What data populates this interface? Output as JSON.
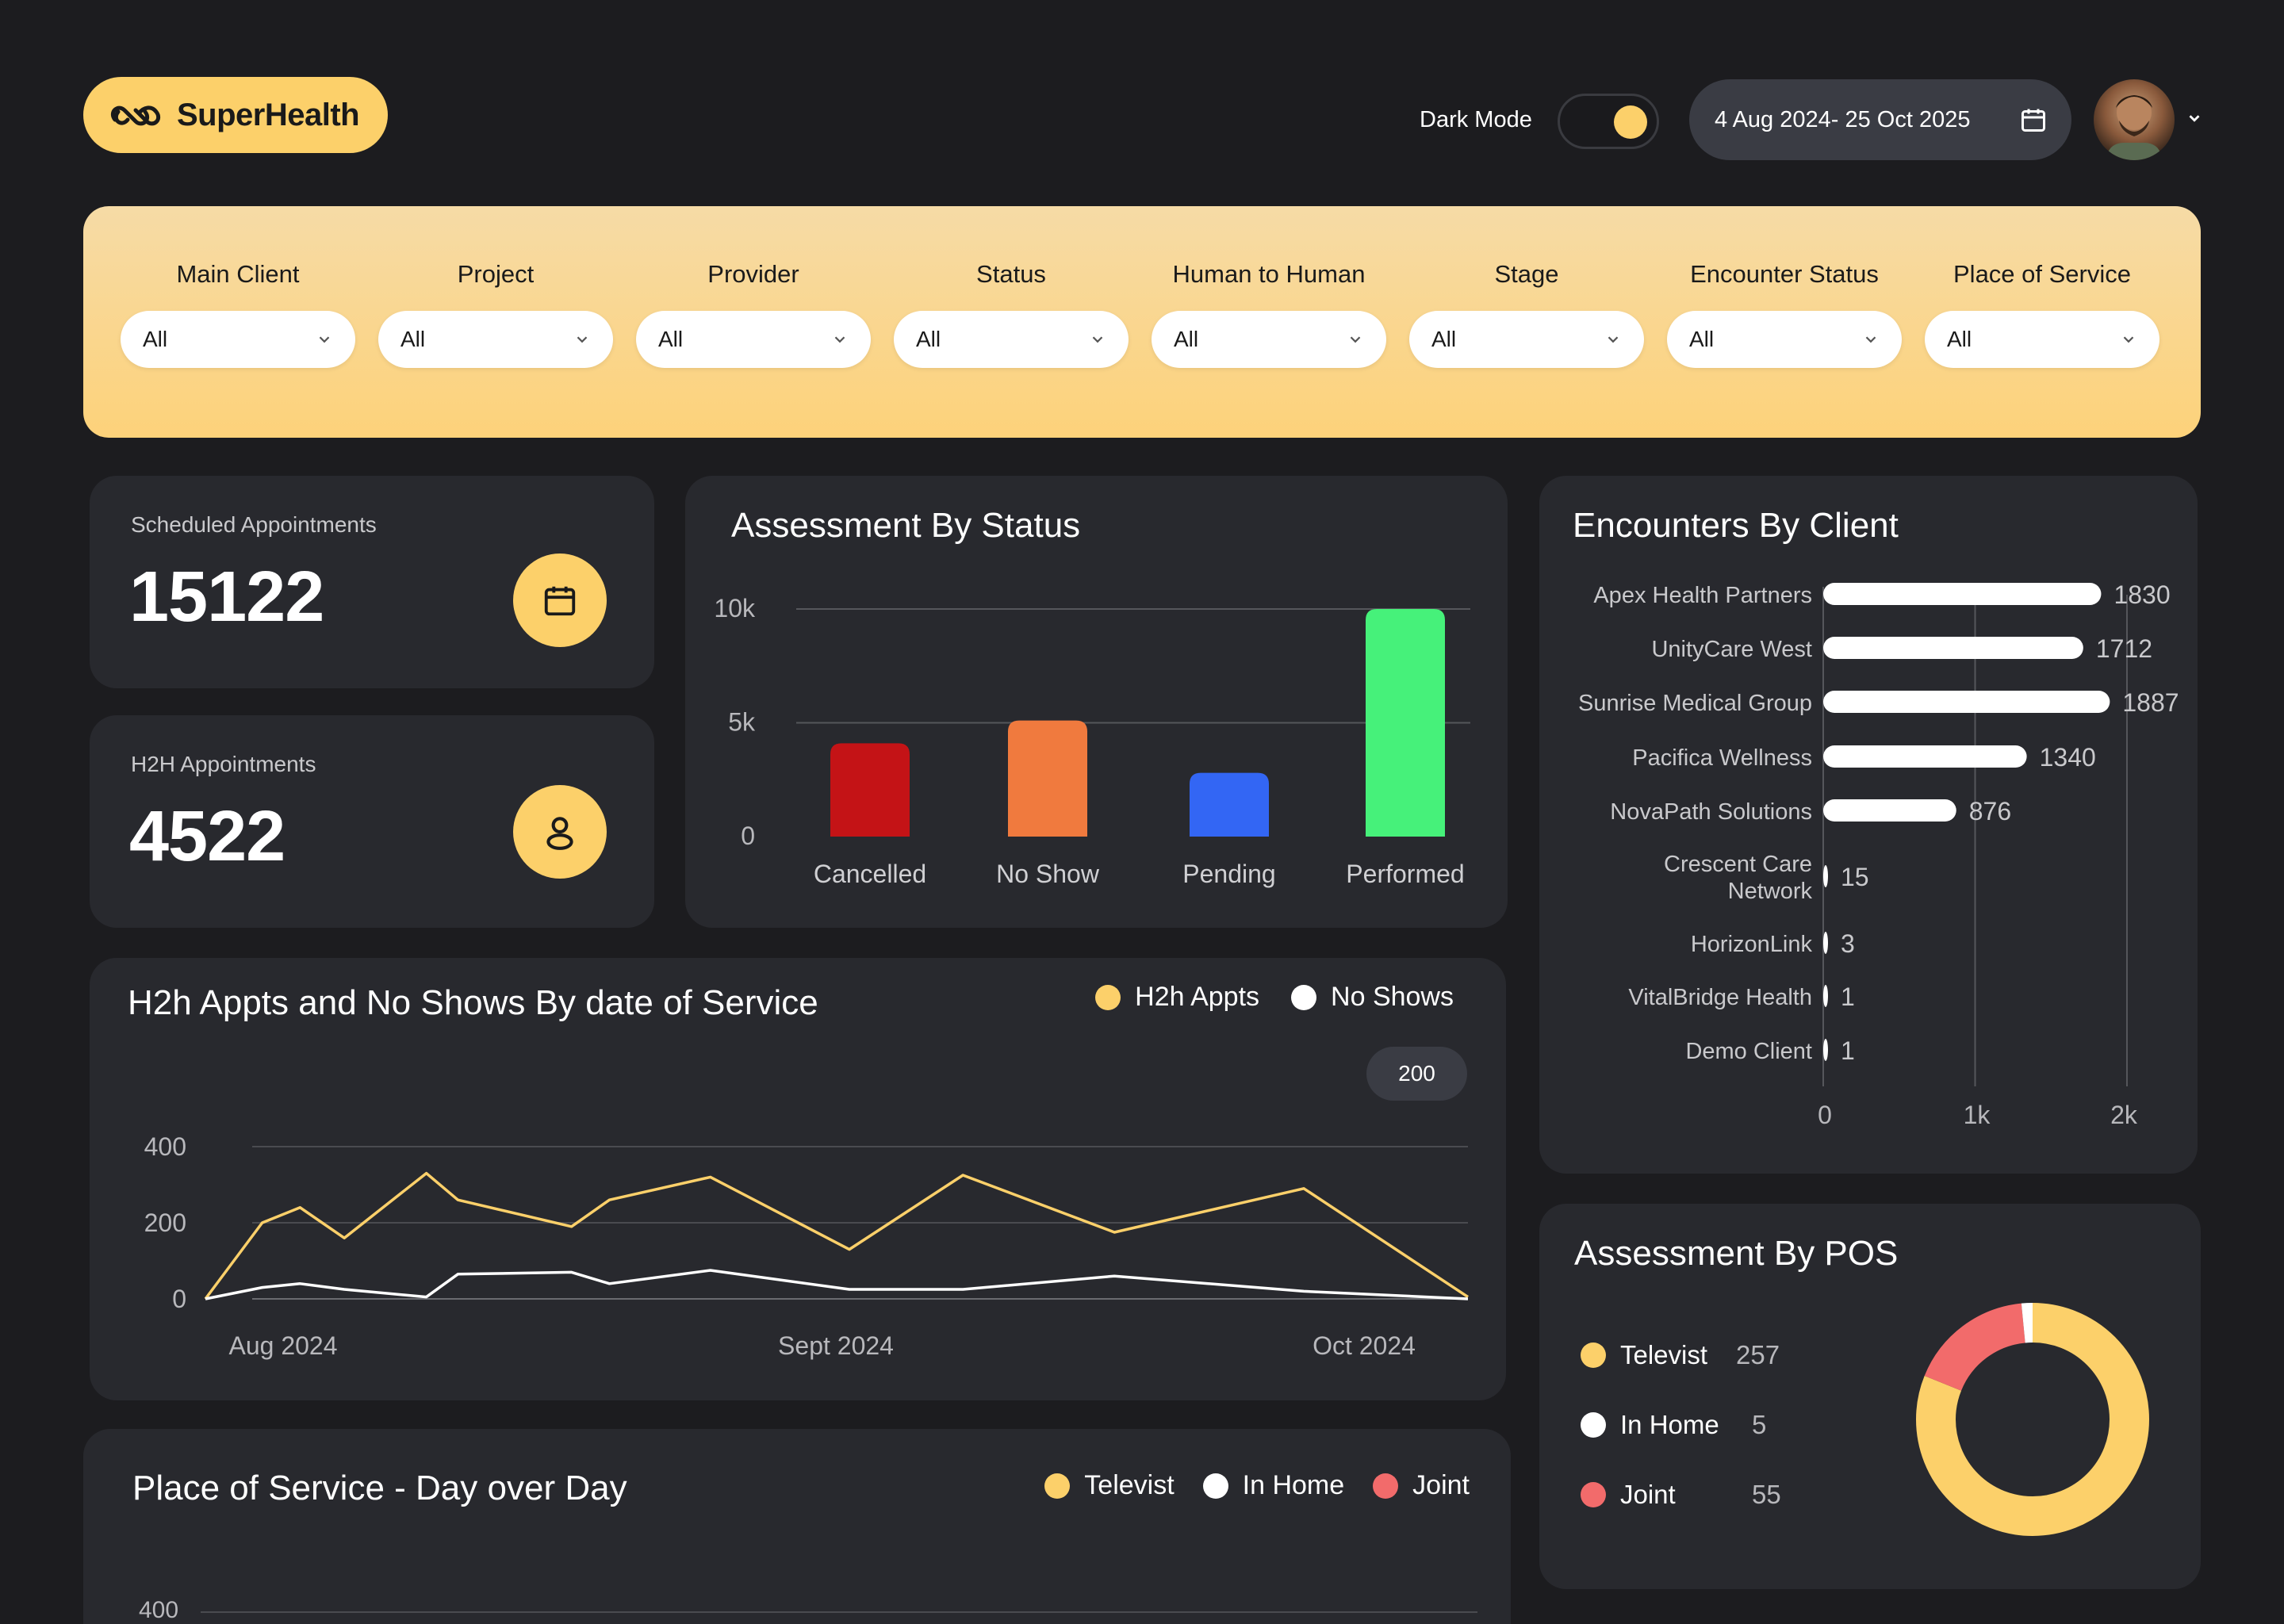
{
  "brand": {
    "name": "SuperHealth"
  },
  "header": {
    "dark_mode_label": "Dark Mode",
    "date_range": "4 Aug 2024- 25 Oct 2025"
  },
  "filters": [
    {
      "label": "Main Client",
      "value": "All"
    },
    {
      "label": "Project",
      "value": "All"
    },
    {
      "label": "Provider",
      "value": "All"
    },
    {
      "label": "Status",
      "value": "All"
    },
    {
      "label": "Human to Human",
      "value": "All"
    },
    {
      "label": "Stage",
      "value": "All"
    },
    {
      "label": "Encounter Status",
      "value": "All"
    },
    {
      "label": "Place of Service",
      "value": "All"
    }
  ],
  "kpis": {
    "scheduled": {
      "title": "Scheduled Appointments",
      "value": "15122"
    },
    "h2h": {
      "title": "H2H Appointments",
      "value": "4522"
    }
  },
  "assessment_status": {
    "title": "Assessment By Status",
    "chart_data": {
      "type": "bar",
      "categories": [
        "Cancelled",
        "No Show",
        "Pending",
        "Performed"
      ],
      "values": [
        4100,
        5100,
        2800,
        10000
      ],
      "colors": [
        "#c41316",
        "#f07a3e",
        "#3366f4",
        "#46f17a"
      ],
      "ylim": [
        0,
        10000
      ],
      "yticks": [
        "0",
        "5k",
        "10k"
      ]
    }
  },
  "encounters_client": {
    "title": "Encounters By Client",
    "chart_data": {
      "type": "bar",
      "orientation": "horizontal",
      "categories": [
        "Apex Health Partners",
        "UnityCare West",
        "Sunrise Medical Group",
        "Pacifica Wellness",
        "NovaPath Solutions",
        "Crescent Care|Network",
        "HorizonLink",
        "VitalBridge Health",
        "Demo Client"
      ],
      "values": [
        1830,
        1712,
        1887,
        1340,
        876,
        15,
        3,
        1,
        1
      ],
      "labels": [
        "1830",
        "1712",
        "1887",
        "1340",
        "876",
        "15",
        "3",
        "1",
        "1"
      ],
      "xlim": [
        0,
        2000
      ],
      "xticks": [
        "0",
        "1k",
        "2k"
      ]
    }
  },
  "h2h_line": {
    "title": "H2h Appts and No Shows By date of Service",
    "legend": [
      {
        "name": "H2h Appts",
        "color": "#fcd06a"
      },
      {
        "name": "No Shows",
        "color": "#ffffff"
      }
    ],
    "badge": "200",
    "chart_data": {
      "type": "line",
      "x_labels": [
        "Aug 2024",
        "Sept 2024",
        "Oct 2024"
      ],
      "yticks": [
        "0",
        "200",
        "400"
      ],
      "ylim": [
        0,
        400
      ],
      "x": [
        0,
        0.045,
        0.075,
        0.11,
        0.175,
        0.2,
        0.29,
        0.32,
        0.4,
        0.51,
        0.6,
        0.72,
        0.87,
        1.0
      ],
      "series": [
        {
          "name": "H2h Appts",
          "values": [
            0,
            200,
            240,
            160,
            330,
            260,
            190,
            260,
            320,
            130,
            325,
            175,
            290,
            5
          ]
        },
        {
          "name": "No Shows",
          "values": [
            0,
            30,
            40,
            25,
            5,
            65,
            70,
            40,
            75,
            25,
            25,
            60,
            20,
            0
          ]
        }
      ]
    }
  },
  "pos_day": {
    "title": "Place of Service - Day over Day",
    "legend": [
      {
        "name": "Televist",
        "color": "#fcd06a"
      },
      {
        "name": "In Home",
        "color": "#ffffff"
      },
      {
        "name": "Joint",
        "color": "#f26b6b"
      }
    ],
    "ytick_top": "400"
  },
  "pos_donut": {
    "title": "Assessment By POS",
    "chart_data": {
      "type": "pie",
      "categories": [
        "Televist",
        "In Home",
        "Joint"
      ],
      "values": [
        257,
        5,
        55
      ],
      "labels": [
        "257",
        "5",
        "55"
      ],
      "colors": [
        "#fcd06a",
        "#ffffff",
        "#f26b6b"
      ]
    },
    "display_order": [
      "Televist",
      "In Home",
      "Joint"
    ]
  }
}
